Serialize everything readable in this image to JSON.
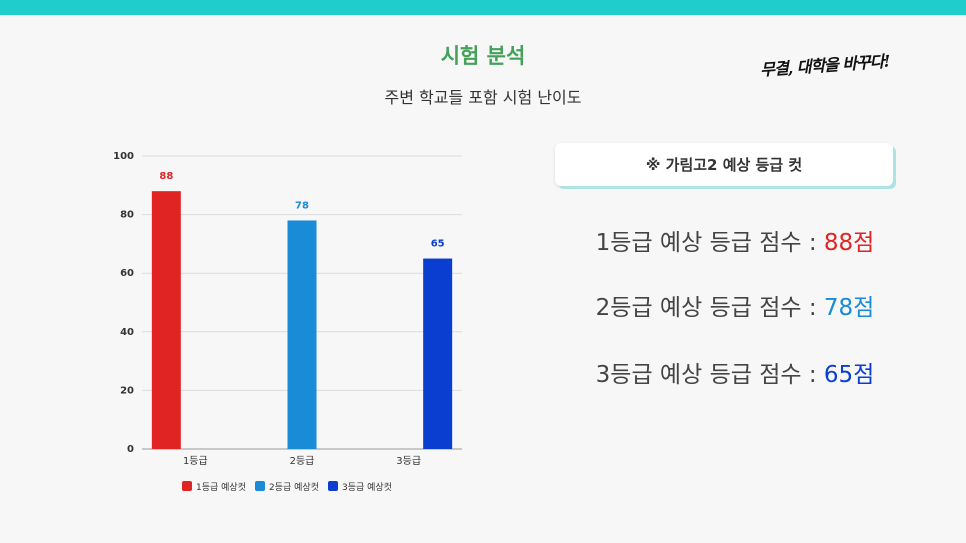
{
  "header": {
    "title": "시험 분석",
    "subtitle": "주변 학교들 포함 시험 난이도",
    "slogan": "무결, 대학을 바꾸다!"
  },
  "card": {
    "label": "※ 가림고2 예상 등급 컷"
  },
  "scores": [
    {
      "label": "1등급 예상 등급 점수 : ",
      "value": "88점",
      "color": "#e02424"
    },
    {
      "label": "2등급 예상 등급 점수 : ",
      "value": "78점",
      "color": "#1a8bd6"
    },
    {
      "label": "3등급 예상 등급 점수 : ",
      "value": "65점",
      "color": "#0a3ed1"
    }
  ],
  "chart_data": {
    "type": "bar",
    "categories": [
      "1등급",
      "2등급",
      "3등급"
    ],
    "series": [
      {
        "name": "1등급 예상컷",
        "values": [
          88,
          null,
          null
        ],
        "color": "#e02424"
      },
      {
        "name": "2등급 예상컷",
        "values": [
          null,
          78,
          null
        ],
        "color": "#1a8bd6"
      },
      {
        "name": "3등급 예상컷",
        "values": [
          null,
          null,
          65
        ],
        "color": "#0a3ed1"
      }
    ],
    "yticks": [
      0,
      20,
      40,
      60,
      80,
      100
    ],
    "ylim": [
      0,
      100
    ],
    "grid": true,
    "legend": "bottom"
  }
}
